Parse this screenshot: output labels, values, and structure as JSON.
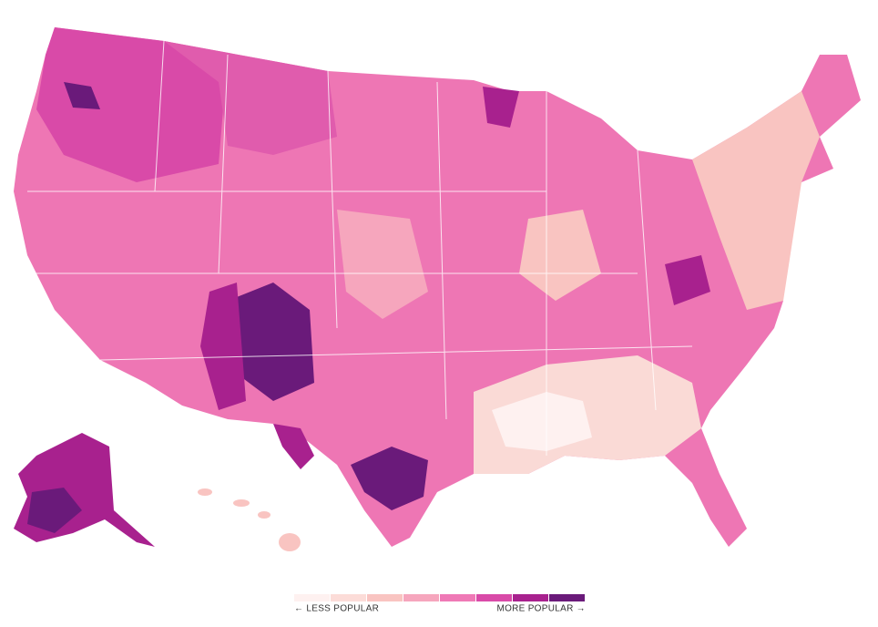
{
  "legend": {
    "colors": [
      "#fef1f0",
      "#fcdcd8",
      "#f9c4c1",
      "#f6a6bd",
      "#ef79b6",
      "#d94aa8",
      "#a8218e",
      "#6a1a7a"
    ],
    "low_label": "← LESS POPULAR",
    "high_label": "MORE POPULAR →"
  }
}
